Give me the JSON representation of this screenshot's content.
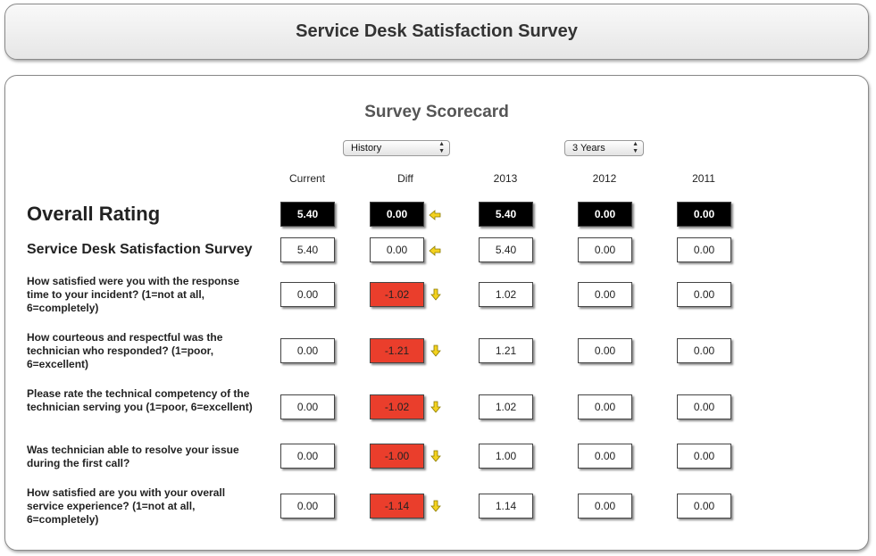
{
  "header": {
    "title": "Service Desk Satisfaction Survey"
  },
  "scorecard": {
    "title": "Survey Scorecard",
    "history_select": "History",
    "years_select": "3 Years",
    "columns": [
      "Current",
      "Diff",
      "2013",
      "2012",
      "2011"
    ]
  },
  "rows": [
    {
      "label": "Overall Rating",
      "current": "5.40",
      "diff": "0.00",
      "y2013": "5.40",
      "y2012": "0.00",
      "y2011": "0.00",
      "trend_icon": "arrow-left-icon"
    },
    {
      "label": "Service Desk Satisfaction Survey",
      "current": "5.40",
      "diff": "0.00",
      "y2013": "5.40",
      "y2012": "0.00",
      "y2011": "0.00",
      "trend_icon": "arrow-left-icon"
    },
    {
      "label": "How satisfied were you with the response time to your incident? (1=not at all, 6=completely)",
      "current": "0.00",
      "diff": "-1.02",
      "y2013": "1.02",
      "y2012": "0.00",
      "y2011": "0.00",
      "trend_icon": "arrow-down-icon"
    },
    {
      "label": "How courteous and respectful was the technician who responded? (1=poor, 6=excellent)",
      "current": "0.00",
      "diff": "-1.21",
      "y2013": "1.21",
      "y2012": "0.00",
      "y2011": "0.00",
      "trend_icon": "arrow-down-icon"
    },
    {
      "label": "Please rate the technical competency of the technician serving you (1=poor, 6=excellent)",
      "current": "0.00",
      "diff": "-1.02",
      "y2013": "1.02",
      "y2012": "0.00",
      "y2011": "0.00",
      "trend_icon": "arrow-down-icon"
    },
    {
      "label": "Was technician able to resolve your issue during the first call?",
      "current": "0.00",
      "diff": "-1.00",
      "y2013": "1.00",
      "y2012": "0.00",
      "y2011": "0.00",
      "trend_icon": "arrow-down-icon"
    },
    {
      "label": "How satisfied are you with your overall service experience? (1=not at all, 6=completely)",
      "current": "0.00",
      "diff": "-1.14",
      "y2013": "1.14",
      "y2012": "0.00",
      "y2011": "0.00",
      "trend_icon": "arrow-down-icon"
    }
  ],
  "colors": {
    "negative": "#ea3e2c",
    "arrow": "#f4d21f",
    "overall": "#000000"
  }
}
